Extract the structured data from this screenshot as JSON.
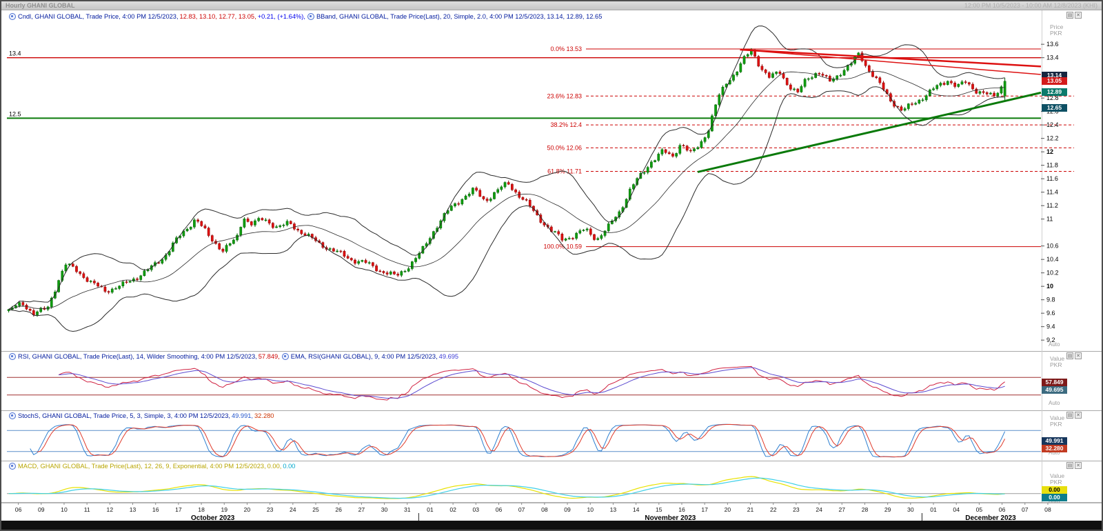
{
  "titlebar": {
    "title": "Hourly GHANI GLOBAL",
    "range": "12:00 PM 10/5/2023 - 10:00 AM 12/8/2023 (KHI)"
  },
  "axis_labels": {
    "price": "Price",
    "value": "Value",
    "currency": "PKR",
    "auto": "Auto"
  },
  "icons": {
    "panel_menu": "▤",
    "panel_close": "✕"
  },
  "colors": {
    "up": "#0f9e0f",
    "up_dark": "#046104",
    "down": "#e01010",
    "down_dark": "#8a0808",
    "bband": "#2a2a2a",
    "fib": "#cc0000",
    "trend_red": "#dd1111",
    "trend_green": "#0a7a0a",
    "hline_red": "#cc0000",
    "hline_green": "#0a7a0a",
    "rsi": "#d02040",
    "rsi_ema": "#5b4ad0",
    "rsi_guide": "#a03030",
    "stoch_k": "#2d7fd0",
    "stoch_d": "#e03a2a",
    "stoch_guide": "#5b8fc9",
    "macd": "#e8e200",
    "macd_signal": "#3fd0e8",
    "macd_zero": "#9a9a9a"
  },
  "legends": {
    "main": [
      {
        "icon": true
      },
      {
        "text": "Cndl, GHANI GLOBAL, Trade Price, 4:00 PM 12/5/2023, ",
        "color": "#001a9e"
      },
      {
        "text": "12.83, 13.10, 12.77, 13.05, ",
        "color": "#cc0000"
      },
      {
        "text": "+0.21, (+1.64%), ",
        "color": "#0000ee"
      },
      {
        "icon": true
      },
      {
        "text": "BBand, GHANI GLOBAL, Trade Price(Last), 20, Simple, 2.0, 4:00 PM 12/5/2023, ",
        "color": "#001a9e"
      },
      {
        "text": "13.14, 12.89, 12.65",
        "color": "#001a9e"
      }
    ],
    "rsi": [
      {
        "icon": true
      },
      {
        "text": "RSI, GHANI GLOBAL, Trade Price(Last), 14, Wilder Smoothing, 4:00 PM 12/5/2023, ",
        "color": "#001a9e"
      },
      {
        "text": "57.849, ",
        "color": "#cc0000"
      },
      {
        "icon": true
      },
      {
        "text": "EMA, RSI(GHANI GLOBAL), 9, 4:00 PM 12/5/2023, ",
        "color": "#001a9e"
      },
      {
        "text": "49.695",
        "color": "#3a3ad6"
      }
    ],
    "stoch": [
      {
        "icon": true
      },
      {
        "text": "StochS, GHANI GLOBAL, Trade Price, 5, 3, Simple, 3, 4:00 PM 12/5/2023, ",
        "color": "#001a9e"
      },
      {
        "text": "49.991, ",
        "color": "#2255cc"
      },
      {
        "text": "32.280",
        "color": "#cc3300"
      }
    ],
    "macd": [
      {
        "icon": true
      },
      {
        "text": "MACD, GHANI GLOBAL, Trade Price(Last), 12, 26, 9, Exponential, 4:00 PM 12/5/2023, ",
        "color": "#b8a500"
      },
      {
        "text": "0.00, ",
        "color": "#b8a500"
      },
      {
        "text": "0.00",
        "color": "#00a8cc"
      }
    ]
  },
  "x_axis": {
    "months": [
      {
        "label": "October 2023",
        "days": [
          "06",
          "09",
          "10",
          "11",
          "12",
          "13",
          "16",
          "17",
          "18",
          "19",
          "20",
          "23",
          "24",
          "25",
          "26",
          "27",
          "30",
          "31"
        ]
      },
      {
        "label": "November 2023",
        "days": [
          "01",
          "02",
          "03",
          "06",
          "07",
          "08",
          "09",
          "10",
          "13",
          "14",
          "15",
          "16",
          "17",
          "20",
          "21",
          "22",
          "23",
          "24",
          "27",
          "28",
          "29",
          "30"
        ]
      },
      {
        "label": "December 2023",
        "days": [
          "01",
          "04",
          "05",
          "06",
          "07",
          "08"
        ]
      }
    ]
  },
  "chart_data": [
    {
      "type": "candlestick",
      "name": "Cndl",
      "symbol": "GHANI GLOBAL",
      "field": "Trade Price",
      "interval": "Hourly",
      "ylim": [
        9.2,
        13.93
      ],
      "last_candle": {
        "time": "4:00 PM 12/5/2023",
        "open": 12.83,
        "high": 13.1,
        "low": 12.77,
        "close": 13.05,
        "change": "+0.21",
        "change_pct": "+1.64%"
      },
      "bollinger": {
        "period": 20,
        "ma_type": "Simple",
        "stdev": 2.0,
        "upper": 13.14,
        "mid": 12.89,
        "lower": 12.65
      },
      "y_ticks": [
        "13.6",
        "13.4",
        "12.8",
        "12.6",
        "12.4",
        "12.2",
        "12",
        "11.8",
        "11.6",
        "11.4",
        "11.2",
        "11",
        "10.6",
        "10.4",
        "10.2",
        "10",
        "9.8",
        "9.6",
        "9.4",
        "9.2"
      ],
      "bold_ticks": [
        "12",
        "10"
      ],
      "hlines": [
        {
          "price": 13.4,
          "label": "13.4",
          "color": "#cc0000",
          "width": 1.4
        },
        {
          "price": 12.5,
          "label": "12.5",
          "color": "#0a7a0a",
          "width": 2
        }
      ],
      "fibonacci": [
        {
          "pct": "0.0%",
          "price": 13.53,
          "price_label": "13.53",
          "style": "solid"
        },
        {
          "pct": "23.6%",
          "price": 12.83,
          "price_label": "12.83",
          "style": "dashed"
        },
        {
          "pct": "38.2%",
          "price": 12.4,
          "price_label": "12.4",
          "style": "dashed"
        },
        {
          "pct": "50.0%",
          "price": 12.06,
          "price_label": "12.06",
          "style": "dashed"
        },
        {
          "pct": "61.8%",
          "price": 11.71,
          "price_label": "11.71",
          "style": "dashed"
        },
        {
          "pct": "100.0%",
          "price": 10.59,
          "price_label": "10.59",
          "style": "solid"
        }
      ],
      "trendlines": [
        {
          "x1": 0.709,
          "p1": 13.52,
          "x2": 1.0,
          "p2": 13.27,
          "color": "#dd1111",
          "width": 2.5
        },
        {
          "x1": 0.709,
          "p1": 13.52,
          "x2": 1.0,
          "p2": 13.15,
          "color": "#dd1111",
          "width": 1.5
        },
        {
          "x1": 0.668,
          "p1": 11.7,
          "x2": 1.0,
          "p2": 12.88,
          "color": "#0a7a0a",
          "width": 3
        }
      ],
      "price_badges": [
        {
          "label": "13.14",
          "price": 13.14,
          "bg": "#16263f"
        },
        {
          "label": "13.05",
          "price": 13.05,
          "bg": "#d31b1b"
        },
        {
          "label": "12.89",
          "price": 12.89,
          "bg": "#0c7b6c"
        },
        {
          "label": "12.65",
          "price": 12.65,
          "bg": "#0d5064"
        }
      ],
      "price_path": [
        [
          0,
          9.63
        ],
        [
          0.6,
          9.73
        ],
        [
          1.1,
          9.6
        ],
        [
          1.7,
          9.68
        ],
        [
          2.2,
          10.12
        ],
        [
          2.5,
          10.32
        ],
        [
          3,
          10.22
        ],
        [
          3.6,
          10.05
        ],
        [
          4.2,
          9.95
        ],
        [
          5,
          10.02
        ],
        [
          5.6,
          10.12
        ],
        [
          6.2,
          10.25
        ],
        [
          6.8,
          10.45
        ],
        [
          7.3,
          10.68
        ],
        [
          7.8,
          10.85
        ],
        [
          8.2,
          11.0
        ],
        [
          8.8,
          10.72
        ],
        [
          9.4,
          10.55
        ],
        [
          10,
          10.72
        ],
        [
          10.3,
          11.05
        ],
        [
          10.6,
          10.92
        ],
        [
          11.2,
          10.98
        ],
        [
          11.8,
          10.88
        ],
        [
          12.3,
          10.95
        ],
        [
          13,
          10.78
        ],
        [
          13.6,
          10.62
        ],
        [
          14.3,
          10.52
        ],
        [
          15,
          10.42
        ],
        [
          15.6,
          10.36
        ],
        [
          16.3,
          10.22
        ],
        [
          17,
          10.14
        ],
        [
          17.5,
          10.3
        ],
        [
          18.1,
          10.52
        ],
        [
          18.7,
          10.85
        ],
        [
          19.3,
          11.12
        ],
        [
          19.9,
          11.32
        ],
        [
          20.4,
          11.45
        ],
        [
          20.9,
          11.28
        ],
        [
          21.4,
          11.4
        ],
        [
          21.9,
          11.52
        ],
        [
          22.4,
          11.35
        ],
        [
          22.8,
          11.22
        ],
        [
          23.3,
          11.02
        ],
        [
          23.8,
          10.82
        ],
        [
          24.3,
          10.68
        ],
        [
          24.8,
          10.75
        ],
        [
          25.3,
          10.85
        ],
        [
          25.8,
          10.72
        ],
        [
          26.3,
          10.88
        ],
        [
          26.8,
          11.1
        ],
        [
          27.3,
          11.45
        ],
        [
          27.8,
          11.68
        ],
        [
          28.2,
          11.88
        ],
        [
          28.7,
          12.02
        ],
        [
          29.1,
          11.92
        ],
        [
          29.5,
          12.12
        ],
        [
          29.9,
          11.95
        ],
        [
          30.3,
          12.1
        ],
        [
          30.7,
          12.35
        ],
        [
          31.1,
          12.8
        ],
        [
          31.5,
          13.05
        ],
        [
          31.9,
          13.18
        ],
        [
          32.3,
          13.38
        ],
        [
          32.6,
          13.5
        ],
        [
          33,
          13.25
        ],
        [
          33.4,
          13.1
        ],
        [
          33.8,
          13.22
        ],
        [
          34.2,
          13.0
        ],
        [
          34.6,
          12.85
        ],
        [
          35,
          13.08
        ],
        [
          35.5,
          13.18
        ],
        [
          36,
          13.05
        ],
        [
          36.5,
          13.2
        ],
        [
          37,
          13.32
        ],
        [
          37.3,
          13.45
        ],
        [
          37.7,
          13.22
        ],
        [
          38.2,
          13.0
        ],
        [
          38.7,
          12.78
        ],
        [
          39.2,
          12.62
        ],
        [
          39.7,
          12.72
        ],
        [
          40.2,
          12.82
        ],
        [
          40.7,
          12.95
        ],
        [
          41.2,
          13.08
        ],
        [
          41.6,
          12.98
        ],
        [
          42,
          13.05
        ],
        [
          42.4,
          12.92
        ],
        [
          42.8,
          12.85
        ],
        [
          43.2,
          12.8
        ],
        [
          43.7,
          13.05
        ]
      ]
    },
    {
      "type": "line",
      "name": "RSI",
      "params": "14, Wilder Smoothing",
      "last": 57.849,
      "ema": {
        "period": 9,
        "last": 49.695
      },
      "guides": [
        70,
        30
      ],
      "badges": [
        {
          "label": "57.849",
          "value": 57.849,
          "bg": "#7e1a1a"
        },
        {
          "label": "49.695",
          "value": 49.695,
          "bg": "#3c6b80"
        }
      ]
    },
    {
      "type": "line",
      "name": "StochS",
      "params": "5, 3, Simple, 3",
      "k_last": 49.991,
      "d_last": 32.28,
      "guides": [
        80,
        20
      ],
      "badges": [
        {
          "label": "49.991",
          "value": 49.991,
          "bg": "#16365c"
        },
        {
          "label": "32.280",
          "value": 32.28,
          "bg": "#c23b22"
        }
      ]
    },
    {
      "type": "line",
      "name": "MACD",
      "params": "12, 26, 9, Exponential",
      "macd_last": 0.0,
      "signal_last": 0.0,
      "badges": [
        {
          "label": "0.00",
          "bg": "#e8df0e",
          "fg": "#000000"
        },
        {
          "label": "0.00",
          "bg": "#0e7d8c"
        }
      ]
    }
  ]
}
